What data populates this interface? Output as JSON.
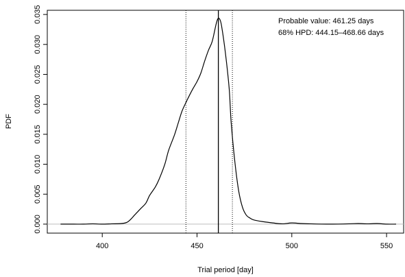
{
  "chart_data": {
    "type": "line",
    "xlabel": "Trial period [day]",
    "ylabel": "PDF",
    "xlim": [
      371,
      559
    ],
    "ylim": [
      -0.0015,
      0.0357
    ],
    "x_ticks": [
      400,
      450,
      500,
      550
    ],
    "x_tick_labels": [
      "400",
      "450",
      "500",
      "550"
    ],
    "y_ticks": [
      0.0,
      0.005,
      0.01,
      0.015,
      0.02,
      0.025,
      0.03,
      0.035
    ],
    "y_tick_labels": [
      "0.000",
      "0.005",
      "0.010",
      "0.015",
      "0.020",
      "0.025",
      "0.030",
      "0.035"
    ],
    "grid": false,
    "legend": "none",
    "baseline_y": 0,
    "annotations": {
      "probable_value": "Probable value: 461.25 days",
      "hpd": "68% HPD: 444.15–468.66 days"
    },
    "vertical_lines": {
      "probable_value": 461.25,
      "hpd_lower": 444.15,
      "hpd_upper": 468.66
    },
    "series": [
      {
        "x": [
          378,
          385,
          390,
          395,
          400,
          405,
          410,
          413,
          415,
          417,
          420,
          423,
          425,
          428,
          430,
          433,
          435,
          438,
          440,
          442,
          444,
          446,
          448,
          450,
          452,
          454,
          456,
          458,
          460,
          461,
          462,
          463,
          465,
          467,
          468,
          470,
          472,
          474,
          476,
          478,
          480,
          485,
          490,
          495,
          500,
          505,
          510,
          520,
          530,
          535,
          540,
          545,
          550,
          555
        ],
        "y": [
          0.0,
          0.0,
          0.0,
          5e-05,
          0.0,
          5e-05,
          0.0001,
          0.0003,
          0.0008,
          0.0015,
          0.0025,
          0.0035,
          0.0048,
          0.0062,
          0.0075,
          0.01,
          0.0123,
          0.0148,
          0.0168,
          0.0188,
          0.0202,
          0.0215,
          0.0227,
          0.0238,
          0.0252,
          0.0272,
          0.029,
          0.0305,
          0.0333,
          0.0343,
          0.0342,
          0.033,
          0.0285,
          0.0225,
          0.017,
          0.0103,
          0.0055,
          0.0028,
          0.0015,
          0.001,
          0.0007,
          0.0004,
          0.0002,
          5e-05,
          0.0002,
          0.0001,
          5e-05,
          0.0,
          5e-05,
          0.0001,
          5e-05,
          0.0001,
          0.0,
          0.0
        ],
        "color": "#000000"
      }
    ]
  }
}
